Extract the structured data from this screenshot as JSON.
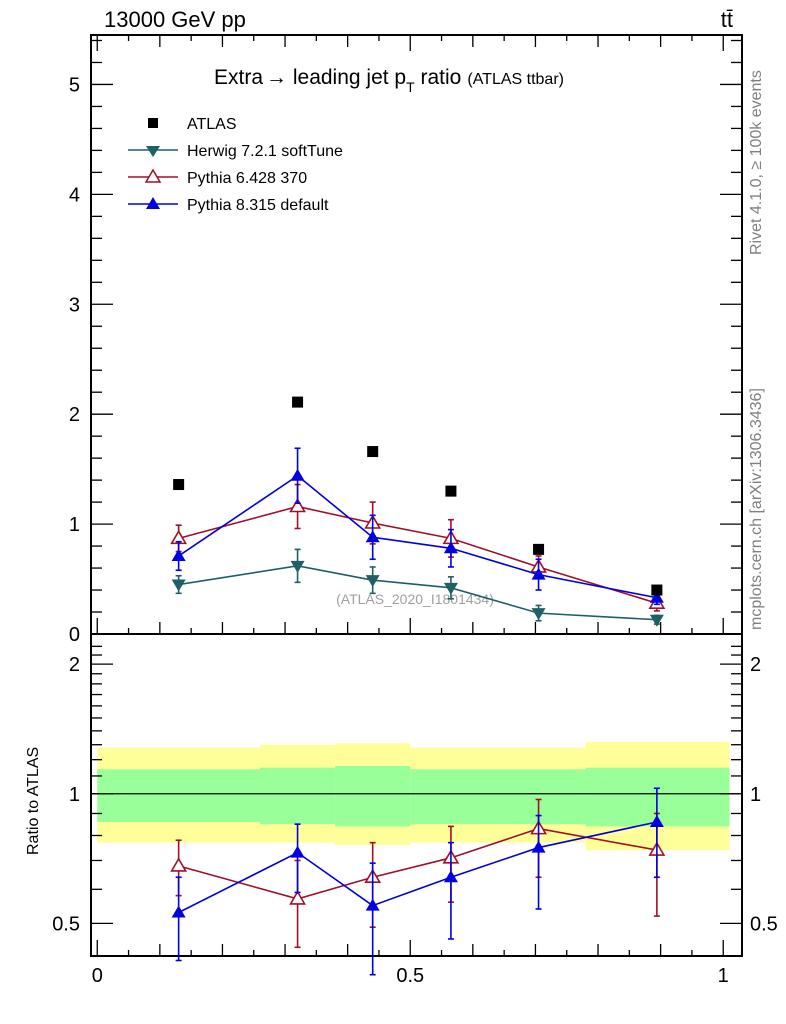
{
  "header": {
    "left": "13000 GeV pp",
    "right": "tt̄"
  },
  "side_labels": {
    "top": "Rivet 4.1.0, ≥ 100k events",
    "bottom": "mcplots.cern.ch [arXiv:1306.3436]"
  },
  "chart_data": [
    {
      "type": "scatter",
      "panel": "main",
      "title": "Extra → leading jet p_T ratio",
      "title_parts": {
        "main": "Extra",
        "arrow": "→",
        "rest": " leading jet p",
        "subscript": "T",
        "after": " ratio",
        "sub": "(ATLAS ttbar)"
      },
      "watermark": "(ATLAS_2020_I1801434)",
      "xlabel": "",
      "ylabel": "",
      "xlim": [
        -0.01,
        1.03
      ],
      "ylim": [
        0,
        5.45
      ],
      "yticks": [
        0,
        1,
        2,
        3,
        4,
        5
      ],
      "ytick_labels": [
        "0",
        "1",
        "2",
        "3",
        "4",
        "5"
      ],
      "grid": false,
      "legend_position": "top-left",
      "x": [
        0.13,
        0.32,
        0.44,
        0.565,
        0.705,
        0.894
      ],
      "series": [
        {
          "name": "ATLAS",
          "color": "#000000",
          "marker": "square",
          "line": false,
          "values": [
            1.36,
            2.11,
            1.66,
            1.3,
            0.77,
            0.4
          ],
          "errors": [
            0,
            0,
            0,
            0,
            0,
            0
          ]
        },
        {
          "name": "Herwig 7.2.1 softTune",
          "color": "#1f5f66",
          "marker": "triangle-down-filled",
          "line": true,
          "values": [
            0.45,
            0.62,
            0.49,
            0.42,
            0.19,
            0.13
          ],
          "errors": [
            0.08,
            0.15,
            0.12,
            0.1,
            0.07,
            0.04
          ]
        },
        {
          "name": "Pythia 6.428 370",
          "color": "#a0102a",
          "marker": "triangle-up-open",
          "line": true,
          "values": [
            0.87,
            1.16,
            1.01,
            0.87,
            0.61,
            0.28
          ],
          "errors": [
            0.12,
            0.2,
            0.19,
            0.17,
            0.1,
            0.07
          ]
        },
        {
          "name": "Pythia 8.315 default",
          "color": "#0000e0",
          "marker": "triangle-up-filled",
          "line": true,
          "values": [
            0.71,
            1.44,
            0.88,
            0.78,
            0.54,
            0.33
          ],
          "errors": [
            0.13,
            0.25,
            0.2,
            0.17,
            0.14,
            0.06
          ]
        }
      ]
    },
    {
      "type": "scatter",
      "panel": "ratio",
      "ylabel": "Ratio to ATLAS",
      "xlabel": "",
      "yscale": "log",
      "xlim": [
        -0.01,
        1.03
      ],
      "ylim": [
        0.42,
        2.35
      ],
      "yticks": [
        0.5,
        1,
        2
      ],
      "ytick_labels": [
        "0.5",
        "1",
        "2"
      ],
      "xticks": [
        0,
        0.5,
        1
      ],
      "xtick_labels": [
        "0",
        "0.5",
        "1"
      ],
      "reference_line": 1,
      "bands": {
        "bin_edges": [
          0,
          0.26,
          0.38,
          0.5,
          0.78,
          1.01
        ],
        "yellow": {
          "color": "#ffff99",
          "low": [
            0.77,
            0.77,
            0.76,
            0.77,
            0.74
          ],
          "high": [
            1.28,
            1.3,
            1.31,
            1.28,
            1.32
          ]
        },
        "green": {
          "color": "#99ff99",
          "low": [
            0.86,
            0.85,
            0.84,
            0.85,
            0.84
          ],
          "high": [
            1.14,
            1.15,
            1.16,
            1.14,
            1.15
          ]
        }
      },
      "x": [
        0.13,
        0.32,
        0.44,
        0.565,
        0.705,
        0.894
      ],
      "series": [
        {
          "name": "Pythia 6.428 370",
          "color": "#a0102a",
          "marker": "triangle-up-open",
          "values": [
            0.68,
            0.57,
            0.64,
            0.71,
            0.83,
            0.74
          ],
          "err_low": [
            0.1,
            0.13,
            0.15,
            0.15,
            0.19,
            0.22
          ],
          "err_high": [
            0.1,
            0.13,
            0.13,
            0.13,
            0.14,
            0.16
          ]
        },
        {
          "name": "Pythia 8.315 default",
          "color": "#0000e0",
          "marker": "triangle-up-filled",
          "values": [
            0.53,
            0.73,
            0.55,
            0.64,
            0.75,
            0.86
          ],
          "err_low": [
            0.12,
            0.14,
            0.17,
            0.18,
            0.21,
            0.22
          ],
          "err_high": [
            0.11,
            0.12,
            0.14,
            0.13,
            0.14,
            0.17
          ]
        }
      ]
    }
  ]
}
